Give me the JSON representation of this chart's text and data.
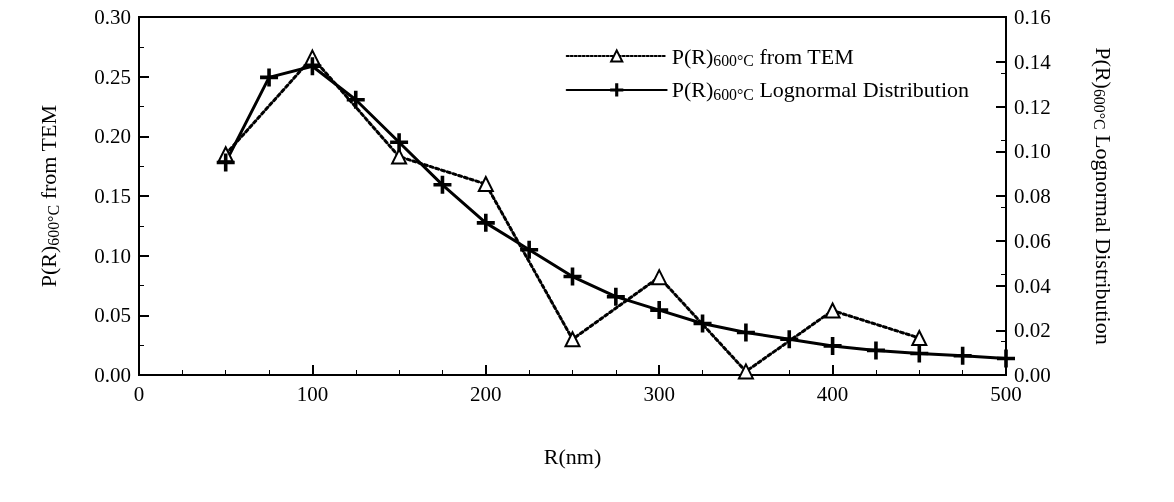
{
  "chart_data": {
    "type": "line",
    "xlabel": "R(nm)",
    "ylabel": "P(R)$_{600°C}$ from TEM",
    "y2label": "P(R)$_{600°C}$ Lognormal Distribution",
    "xlim": [
      0,
      500
    ],
    "xticks": [
      0,
      100,
      200,
      300,
      400,
      500
    ],
    "ylim": [
      0,
      0.3
    ],
    "yticks": [
      {
        "value": 0,
        "label": "0.00"
      },
      {
        "value": 0.05,
        "label": "0.05"
      },
      {
        "value": 0.1,
        "label": "0.10"
      },
      {
        "value": 0.15,
        "label": "0.15"
      },
      {
        "value": 0.2,
        "label": "0.20"
      },
      {
        "value": 0.25,
        "label": "0.25"
      },
      {
        "value": 0.3,
        "label": "0.30"
      }
    ],
    "y2lim": [
      0,
      0.16
    ],
    "y2ticks": [
      {
        "value": 0,
        "label": "0.00"
      },
      {
        "value": 0.02,
        "label": "0.02"
      },
      {
        "value": 0.04,
        "label": "0.04"
      },
      {
        "value": 0.06,
        "label": "0.06"
      },
      {
        "value": 0.08,
        "label": "0.08"
      },
      {
        "value": 0.1,
        "label": "0.10"
      },
      {
        "value": 0.12,
        "label": "0.12"
      },
      {
        "value": 0.14,
        "label": "0.14"
      },
      {
        "value": 0.16,
        "label": "0.16"
      }
    ],
    "legend": "top right",
    "grid": false,
    "series": [
      {
        "name": "P(R)$_{600°C}$ from TEM",
        "color": "#000000",
        "marker": "triangle",
        "line_style": "dotted",
        "x": [
          50,
          100,
          150,
          200,
          250,
          300,
          350,
          400,
          450
        ],
        "values": [
          0.185,
          0.266,
          0.183,
          0.16,
          0.03,
          0.082,
          0.003,
          0.054,
          0.031
        ]
      },
      {
        "name": "P(R)$_{600°C}$ Lognormal Distribution",
        "color": "#000000",
        "marker": "cross",
        "line_style": "solid",
        "axis": "y2",
        "x": [
          50,
          75,
          100,
          125,
          150,
          175,
          200,
          225,
          250,
          275,
          300,
          325,
          350,
          375,
          400,
          425,
          450,
          475,
          500
        ],
        "values": [
          0.095,
          0.133,
          0.138,
          0.123,
          0.104,
          0.085,
          0.068,
          0.056,
          0.044,
          0.035,
          0.029,
          0.023,
          0.019,
          0.016,
          0.013,
          0.011,
          0.0096,
          0.0086,
          0.0074
        ]
      }
    ]
  }
}
